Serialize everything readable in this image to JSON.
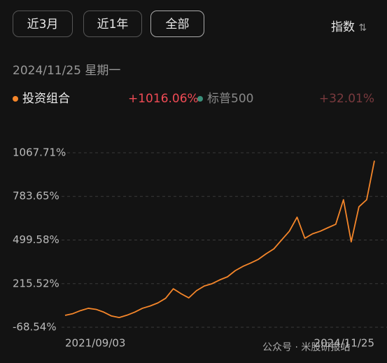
{
  "buttons": [
    "近3月",
    "近1年",
    "全部"
  ],
  "index_label": "指数",
  "date": "2024/11/25 星期一",
  "watermark": "公众号 · 米股研报站",
  "chart_data": {
    "type": "line",
    "legend": [
      {
        "name": "投资组合",
        "color": "#f5862a",
        "change": {
          "value": 1016.06,
          "label": "+1016.06%"
        }
      },
      {
        "name": "标普500",
        "color": "#3a8f7a",
        "change": {
          "value": 32.01,
          "label": "+32.01%"
        }
      }
    ],
    "categories": [
      "2021/09/03",
      null,
      null,
      null,
      null,
      null,
      null,
      null,
      null,
      null,
      null,
      null,
      null,
      null,
      null,
      null,
      null,
      null,
      null,
      null,
      null,
      null,
      null,
      null,
      null,
      null,
      null,
      null,
      null,
      null,
      null,
      null,
      null,
      null,
      null,
      null,
      null,
      null,
      null,
      null,
      "2024/11/25"
    ],
    "series": [
      {
        "name": "投资组合",
        "color": "#f5862a",
        "values": [
          9,
          20,
          40,
          55,
          48,
          30,
          5,
          -5,
          10,
          30,
          55,
          70,
          90,
          120,
          182,
          150,
          123,
          170,
          200,
          215,
          240,
          260,
          300,
          328,
          350,
          374,
          410,
          442,
          500,
          557,
          648,
          511,
          540,
          557,
          580,
          602,
          762,
          488,
          716,
          762,
          1016.06
        ]
      }
    ],
    "ylim": [
      -68.54,
      1067.71
    ],
    "yticks": [
      {
        "value": -68.54,
        "label": "-68.54%"
      },
      {
        "value": 215.52,
        "label": "215.52%"
      },
      {
        "value": 499.58,
        "label": "499.58%"
      },
      {
        "value": 783.65,
        "label": "783.65%"
      },
      {
        "value": 1067.71,
        "label": "1067.71%"
      }
    ],
    "grid": true
  }
}
